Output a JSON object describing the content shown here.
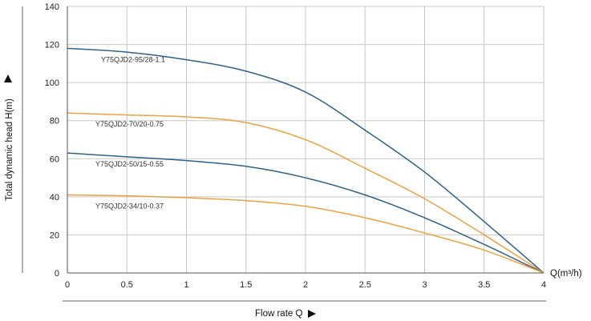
{
  "chart_data": {
    "type": "line",
    "xlabel": "Flow rate Q",
    "ylabel": "Total dynamic head H(m)",
    "x_unit_label": "Q(m³/h)",
    "xlim": [
      0,
      4
    ],
    "ylim": [
      0,
      140
    ],
    "x_ticks": [
      0,
      0.5,
      1,
      1.5,
      2,
      2.5,
      3,
      3.5,
      4
    ],
    "y_ticks": [
      0,
      20,
      40,
      60,
      80,
      100,
      120,
      140
    ],
    "grid": true,
    "colors": {
      "blue": "#2e6189",
      "orange": "#f0a13c",
      "grid": "#c8c8c8",
      "axis": "#555555"
    },
    "series": [
      {
        "name": "Y75QJD2-95/28-1.1",
        "color": "#2e6189",
        "x": [
          0,
          0.5,
          1,
          1.5,
          2,
          2.5,
          3,
          3.5,
          4
        ],
        "y": [
          118,
          116,
          112,
          106,
          95,
          75,
          53,
          27,
          0
        ]
      },
      {
        "name": "Y75QJD2-70/20-0.75",
        "color": "#f0a13c",
        "x": [
          0,
          0.5,
          1,
          1.5,
          2,
          2.5,
          3,
          3.5,
          4
        ],
        "y": [
          84,
          83,
          82,
          79,
          70,
          55,
          39,
          20,
          0
        ]
      },
      {
        "name": "Y75QJD2-50/15-0.55",
        "color": "#2e6189",
        "x": [
          0,
          0.5,
          1,
          1.5,
          2,
          2.5,
          3,
          3.5,
          4
        ],
        "y": [
          63,
          61,
          59,
          56,
          50,
          41,
          29,
          15,
          0
        ]
      },
      {
        "name": "Y75QJD2-34/10-0.37",
        "color": "#f0a13c",
        "x": [
          0,
          0.5,
          1,
          1.5,
          2,
          2.5,
          3,
          3.5,
          4
        ],
        "y": [
          41,
          40.5,
          39.5,
          38,
          35,
          29,
          21,
          12,
          0
        ]
      }
    ]
  }
}
